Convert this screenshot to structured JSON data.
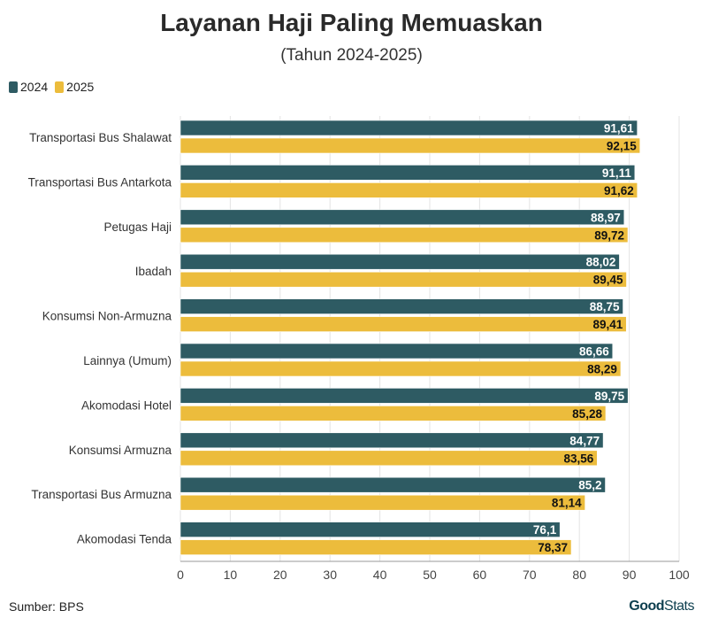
{
  "chart_data": {
    "type": "bar",
    "orientation": "horizontal",
    "title": "Layanan Haji Paling Memuaskan",
    "subtitle": "(Tahun 2024-2025)",
    "categories": [
      "Transportasi Bus Shalawat",
      "Transportasi Bus Antarkota",
      "Petugas Haji",
      "Ibadah",
      "Konsumsi Non-Armuzna",
      "Lainnya (Umum)",
      "Akomodasi Hotel",
      "Konsumsi Armuzna",
      "Transportasi Bus Armuzna",
      "Akomodasi Tenda"
    ],
    "series": [
      {
        "name": "2024",
        "color": "#2e5b63",
        "values": [
          91.61,
          91.11,
          88.97,
          88.02,
          88.75,
          86.66,
          89.75,
          84.77,
          85.2,
          76.1
        ],
        "labels": [
          "91,61",
          "91,11",
          "88,97",
          "88,02",
          "88,75",
          "86,66",
          "89,75",
          "84,77",
          "85,2",
          "76,1"
        ]
      },
      {
        "name": "2025",
        "color": "#ecbc3c",
        "values": [
          92.15,
          91.62,
          89.72,
          89.45,
          89.41,
          88.29,
          85.28,
          83.56,
          81.14,
          78.37
        ],
        "labels": [
          "92,15",
          "91,62",
          "89,72",
          "89,45",
          "89,41",
          "88,29",
          "85,28",
          "83,56",
          "81,14",
          "78,37"
        ]
      }
    ],
    "xlim": [
      0,
      100
    ],
    "xticks": [
      0,
      10,
      20,
      30,
      40,
      50,
      60,
      70,
      80,
      90,
      100
    ],
    "grid": true,
    "legend_position": "top-left"
  },
  "footer": {
    "source": "Sumber: BPS",
    "brand_good": "Good",
    "brand_stats": "Stats"
  }
}
